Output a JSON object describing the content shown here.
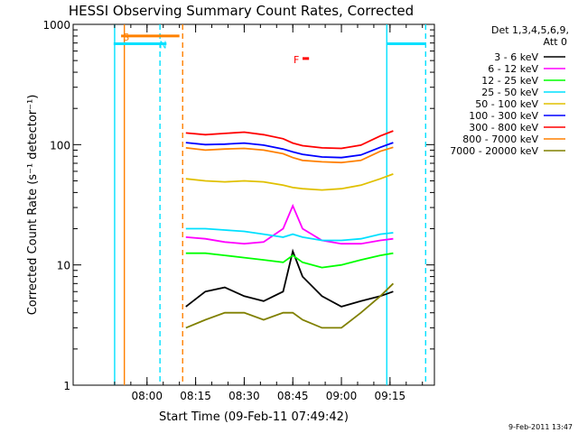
{
  "chart_data": {
    "type": "line",
    "title": "HESSI Observing Summary Count Rates, Corrected",
    "xlabel": "Start Time (09-Feb-11 07:49:42)",
    "ylabel": "Corrected Count Rate (s⁻¹ detector⁻¹)",
    "yscale": "log",
    "ylim": [
      1,
      1000
    ],
    "xlim_minutes": [
      -12.5,
      99
    ],
    "x_ticks": [
      "08:00",
      "08:15",
      "08:30",
      "08:45",
      "09:00",
      "09:15"
    ],
    "y_ticks": [
      "1",
      "10",
      "100",
      "1000"
    ],
    "detector_label": "Det 1,3,4,5,6,9,",
    "attenuator_label": "Att 0",
    "timestamp": "9-Feb-2011 13:47",
    "legend_position": "right",
    "flags": [
      {
        "label": "S",
        "color": "#ff8000",
        "start": "07:52",
        "end": "08:10",
        "level": 800
      },
      {
        "label": "N",
        "color": "#00e0ff",
        "start": "07:49:42",
        "end": "08:06",
        "level": 690
      },
      {
        "label": "F",
        "color": "#ff0000",
        "start": "08:48",
        "end": "08:50",
        "level": 520
      }
    ],
    "night_lines": [
      {
        "color": "#00e0ff",
        "time": "07:50",
        "style": "solid"
      },
      {
        "color": "#ff8000",
        "time": "07:53",
        "style": "solid"
      },
      {
        "color": "#00e0ff",
        "time": "08:04",
        "style": "dashed"
      },
      {
        "color": "#ff8000",
        "time": "08:11",
        "style": "dashed"
      },
      {
        "color": "#00e0ff",
        "time": "09:14",
        "style": "solid"
      },
      {
        "color": "#00e0ff",
        "time": "09:26",
        "style": "dashed"
      }
    ],
    "x": [
      "08:12",
      "08:18",
      "08:24",
      "08:30",
      "08:36",
      "08:42",
      "08:45",
      "08:48",
      "08:54",
      "09:00",
      "09:06",
      "09:12",
      "09:16"
    ],
    "series": [
      {
        "name": "3 - 6 keV",
        "color": "#000000",
        "values": [
          4.5,
          6,
          6.5,
          5.5,
          5,
          6,
          13,
          8,
          5.5,
          4.5,
          5,
          5.5,
          6
        ]
      },
      {
        "name": "6 - 12 keV",
        "color": "#ff00ff",
        "values": [
          17,
          16.5,
          15.5,
          15,
          15.5,
          20,
          31,
          20,
          16,
          15,
          15,
          16,
          16.5
        ]
      },
      {
        "name": "12 - 25 keV",
        "color": "#00ff00",
        "values": [
          12.5,
          12.5,
          12,
          11.5,
          11,
          10.5,
          12,
          10.5,
          9.5,
          10,
          11,
          12,
          12.5
        ]
      },
      {
        "name": "25 - 50 keV",
        "color": "#00e0ff",
        "values": [
          20,
          20,
          19.5,
          19,
          18,
          17,
          18,
          17,
          16,
          16,
          16.5,
          18,
          18.5
        ]
      },
      {
        "name": "50 - 100 keV",
        "color": "#e0c000",
        "values": [
          52,
          50,
          49,
          50,
          49,
          46,
          44,
          43,
          42,
          43,
          46,
          52,
          57
        ]
      },
      {
        "name": "100 - 300 keV",
        "color": "#0000ff",
        "values": [
          104,
          100,
          101,
          103,
          99,
          92,
          87,
          83,
          79,
          78,
          82,
          95,
          104
        ]
      },
      {
        "name": "300 - 800 keV",
        "color": "#ff0000",
        "values": [
          125,
          121,
          124,
          127,
          121,
          112,
          103,
          98,
          94,
          93,
          99,
          118,
          130
        ]
      },
      {
        "name": "800 - 7000 keV",
        "color": "#ff8000",
        "values": [
          94,
          90,
          92,
          93,
          90,
          84,
          78,
          74,
          72,
          71,
          74,
          88,
          95
        ]
      },
      {
        "name": "7000 - 20000 keV",
        "color": "#808000",
        "values": [
          3,
          3.5,
          4,
          4,
          3.5,
          4,
          4,
          3.5,
          3,
          3,
          4,
          5.5,
          7
        ]
      }
    ]
  }
}
